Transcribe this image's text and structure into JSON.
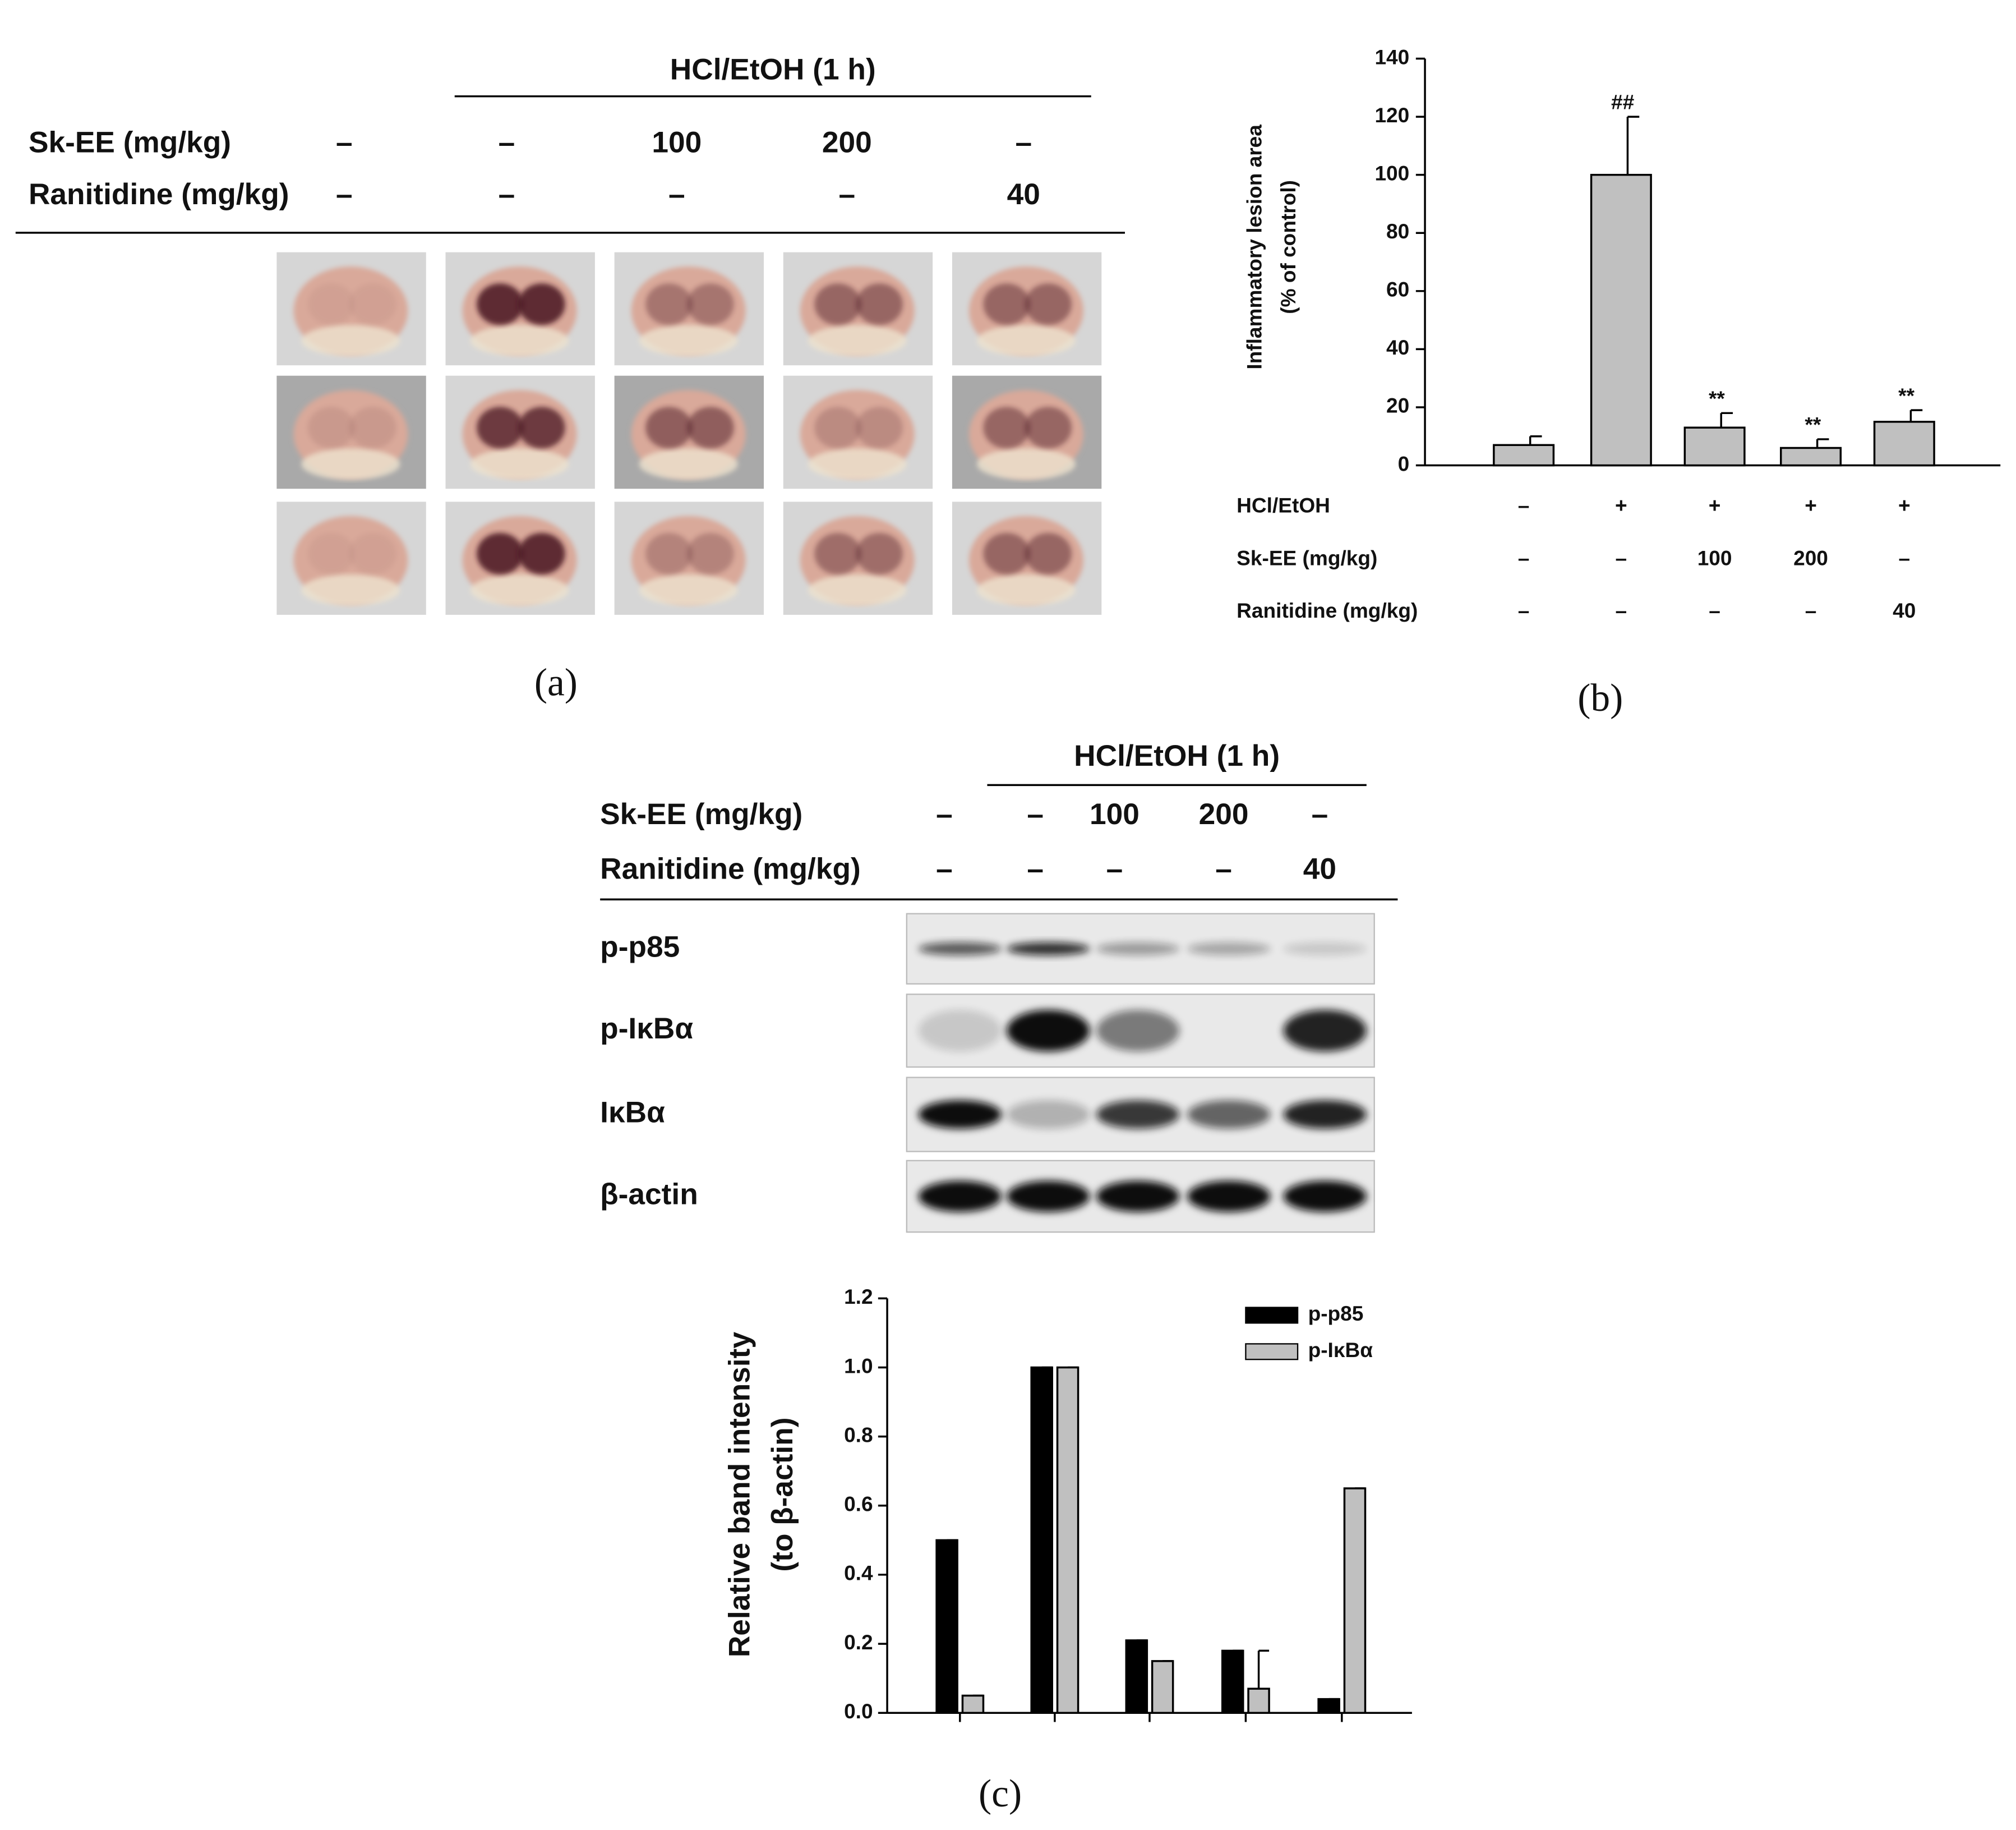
{
  "panel_a": {
    "header": "HCl/EtOH (1 h)",
    "rows": [
      {
        "label": "Sk-EE (mg/kg)",
        "cells": [
          "–",
          "–",
          "100",
          "200",
          "–"
        ]
      },
      {
        "label": "Ranitidine (mg/kg)",
        "cells": [
          "–",
          "–",
          "–",
          "–",
          "40"
        ]
      }
    ],
    "caption": "(a)"
  },
  "panel_b": {
    "caption": "(b)"
  },
  "panel_c": {
    "header": "HCl/EtOH (1 h)",
    "rows": [
      {
        "label": "Sk-EE (mg/kg)",
        "cells": [
          "–",
          "–",
          "100",
          "200",
          "–"
        ]
      },
      {
        "label": "Ranitidine (mg/kg)",
        "cells": [
          "–",
          "–",
          "–",
          "–",
          "40"
        ]
      }
    ],
    "blot_labels": [
      "p-p85",
      "p-IκBα",
      "IκBα",
      "β-actin"
    ],
    "caption": "(c)"
  },
  "chart_data": [
    {
      "type": "bar",
      "ylabel_lines": [
        "Inflammatory lesion area",
        "(% of control)"
      ],
      "values": [
        7,
        100,
        13,
        6,
        15
      ],
      "errors": [
        3,
        20,
        5,
        3,
        4
      ],
      "annotations": [
        null,
        "##",
        "**",
        "**",
        "**"
      ],
      "color": "#c0c0c0",
      "ylim": [
        0,
        140
      ],
      "yticks": [
        0,
        20,
        40,
        60,
        80,
        100,
        120,
        140
      ],
      "treatments": [
        {
          "label": "HCl/EtOH",
          "cells": [
            "–",
            "+",
            "+",
            "+",
            "+"
          ]
        },
        {
          "label": "Sk-EE (mg/kg)",
          "cells": [
            "–",
            "–",
            "100",
            "200",
            "–"
          ]
        },
        {
          "label": "Ranitidine (mg/kg)",
          "cells": [
            "–",
            "–",
            "–",
            "–",
            "40"
          ]
        }
      ]
    },
    {
      "type": "grouped_bar",
      "ylabel_lines": [
        "Relative band intensity",
        "(to β-actin)"
      ],
      "series": [
        {
          "name": "p-p85",
          "color": "#000000",
          "values": [
            0.5,
            1.0,
            0.21,
            0.18,
            0.04
          ],
          "errors": [
            0,
            0,
            0,
            0,
            0
          ]
        },
        {
          "name": "p-IκBα",
          "color": "#c0c0c0",
          "values": [
            0.05,
            1.0,
            0.15,
            0.07,
            0.65
          ],
          "errors": [
            0,
            0,
            0,
            0.11,
            0
          ]
        }
      ],
      "ylim": [
        0,
        1.2
      ],
      "yticks": [
        {
          "value": 0,
          "label": "0.0"
        },
        0.2,
        0.4,
        0.6,
        0.8,
        {
          "value": 1,
          "label": "1.0"
        },
        1.2
      ],
      "legend": "upper right"
    }
  ]
}
